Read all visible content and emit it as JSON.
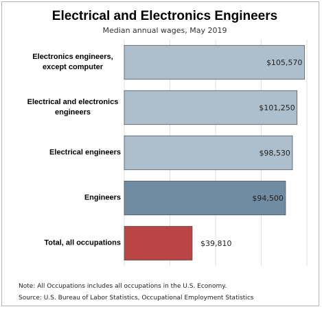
{
  "chart_data": {
    "type": "bar",
    "orientation": "horizontal",
    "title": "Electrical and Electronics Engineers",
    "subtitle": "Median annual wages, May 2019",
    "categories": [
      "Electronics engineers, except computer",
      "Electrical and electronics engineers",
      "Electrical engineers",
      "Engineers",
      "Total, all occupations"
    ],
    "values": [
      105570,
      101250,
      98530,
      94500,
      39810
    ],
    "value_labels": [
      "$105,570",
      "$101,250",
      "$98,530",
      "$94,500",
      "$39,810"
    ],
    "colors": [
      "#adbfcc",
      "#adbfcc",
      "#adbfcc",
      "#6f8ca3",
      "#b94545"
    ],
    "xlim": [
      0,
      107000
    ],
    "grid": true,
    "notes": [
      "Note: All Occupations includes all occupations in the U.S. Economy.",
      "Source: U.S. Bureau of Labor Statistics, Occupational Employment Statistics"
    ]
  }
}
